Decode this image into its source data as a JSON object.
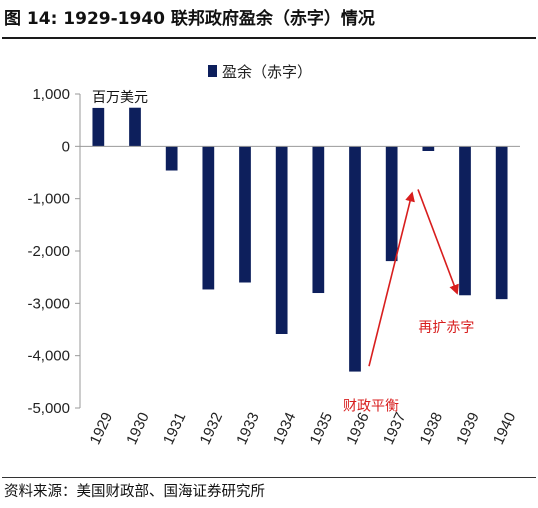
{
  "figure": {
    "title": "图 14:  1929-1940  联邦政府盈余（赤字）情况",
    "source": "资料来源：美国财政部、国海证券研究所"
  },
  "chart_data": {
    "type": "bar",
    "categories": [
      "1929",
      "1930",
      "1931",
      "1932",
      "1933",
      "1934",
      "1935",
      "1936",
      "1937",
      "1938",
      "1939",
      "1940"
    ],
    "series": [
      {
        "name": "盈余（赤字）",
        "values": [
          734,
          738,
          -462,
          -2735,
          -2602,
          -3586,
          -2803,
          -4304,
          -2193,
          -89,
          -2846,
          -2920
        ]
      }
    ],
    "unit_label": "百万美元",
    "ylim": [
      -5000,
      1000
    ],
    "yticks": [
      1000,
      0,
      -1000,
      -2000,
      -3000,
      -4000,
      -5000
    ],
    "ytick_labels": [
      "1,000",
      "0",
      "-1,000",
      "-2,000",
      "-3,000",
      "-4,000",
      "-5,000"
    ],
    "legend_position": "top-center",
    "grid": false,
    "colors": {
      "bar": "#0d1f5c",
      "annotation": "#d81e1e",
      "axis": "#999999"
    },
    "annotations": [
      {
        "text": "财政平衡",
        "arrow": "up",
        "from_category": "1936",
        "to_category": "1938"
      },
      {
        "text": "再扩赤字",
        "arrow": "down",
        "from_category": "1938",
        "to_category": "1939"
      }
    ]
  }
}
